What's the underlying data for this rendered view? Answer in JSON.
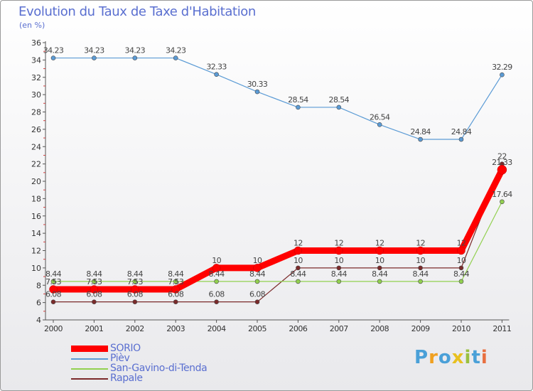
{
  "chart_data": {
    "type": "line",
    "title": "Evolution du Taux de Taxe d'Habitation",
    "subtitle": "(en %)",
    "x": [
      "2000",
      "2001",
      "2002",
      "2003",
      "2004",
      "2005",
      "2006",
      "2007",
      "2008",
      "2009",
      "2010",
      "2011"
    ],
    "ylim": [
      4,
      36
    ],
    "yticks": [
      4,
      6,
      8,
      10,
      12,
      14,
      16,
      18,
      20,
      22,
      24,
      26,
      28,
      30,
      32,
      34,
      36
    ],
    "grid": false,
    "legend_position": "bottom-left",
    "series": [
      {
        "name": "SORIO",
        "color": "#ff0000",
        "values": [
          7.53,
          7.53,
          7.53,
          7.53,
          10,
          10,
          12,
          12,
          12,
          12,
          12,
          21.33
        ],
        "labels": [
          "7.53",
          "7.53",
          "7.53",
          "7.53",
          "10",
          "10",
          "12",
          "12",
          "12",
          "12",
          "12",
          "21.33"
        ]
      },
      {
        "name": "Pièv",
        "color": "#5b9bd5",
        "values": [
          34.23,
          34.23,
          34.23,
          34.23,
          32.33,
          30.33,
          28.54,
          28.54,
          26.54,
          24.84,
          24.84,
          32.29
        ],
        "labels": [
          "34.23",
          "34.23",
          "34.23",
          "34.23",
          "32.33",
          "30.33",
          "28.54",
          "28.54",
          "26.54",
          "24.84",
          "24.84",
          "32.29"
        ]
      },
      {
        "name": "San-Gavino-di-Tenda",
        "color": "#92d050",
        "values": [
          8.44,
          8.44,
          8.44,
          8.44,
          8.44,
          8.44,
          8.44,
          8.44,
          8.44,
          8.44,
          8.44,
          17.64
        ],
        "labels": [
          "8.44",
          "8.44",
          "8.44",
          "8.44",
          "8.44",
          "8.44",
          "8.44",
          "8.44",
          "8.44",
          "8.44",
          "8.44",
          "17.64"
        ]
      },
      {
        "name": "Rapale",
        "color": "#7b2a2a",
        "values": [
          6.08,
          6.08,
          6.08,
          6.08,
          6.08,
          6.08,
          10,
          10,
          10,
          10,
          10,
          22
        ],
        "labels": [
          "6.08",
          "6.08",
          "6.08",
          "6.08",
          "6.08",
          "6.08",
          "10",
          "10",
          "10",
          "10",
          "10",
          "22"
        ]
      }
    ]
  },
  "legend": {
    "items": [
      {
        "label": "SORIO",
        "color": "#ff0000"
      },
      {
        "label": "Pièv",
        "color": "#5b9bd5"
      },
      {
        "label": "San-Gavino-di-Tenda",
        "color": "#92d050"
      },
      {
        "label": "Rapale",
        "color": "#7b2a2a"
      }
    ]
  },
  "logo": {
    "text": "Proxiti"
  }
}
